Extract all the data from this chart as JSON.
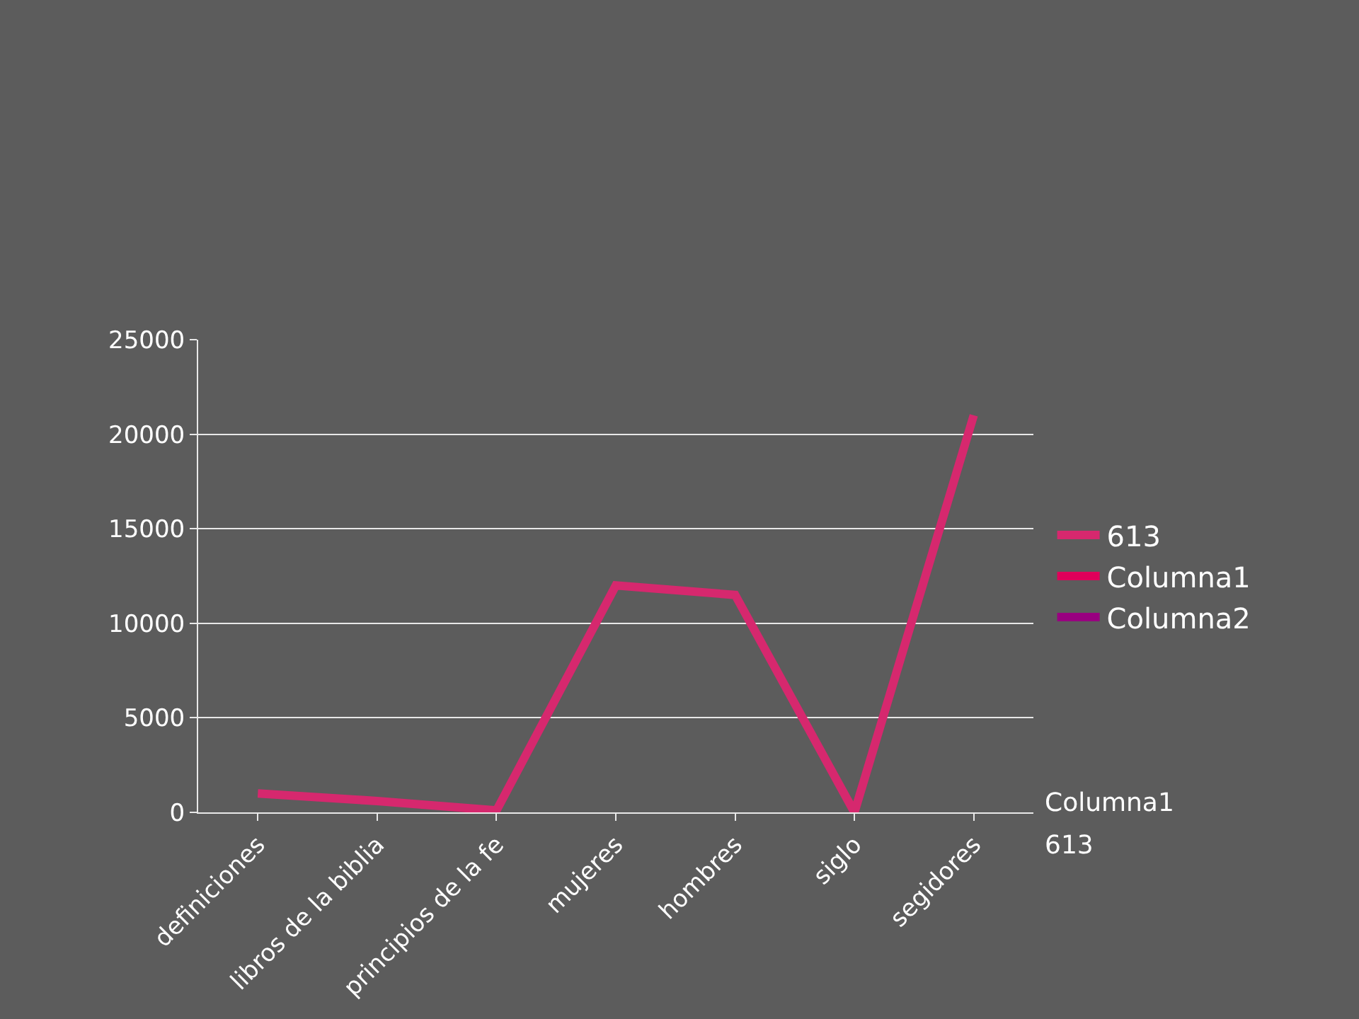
{
  "chart_data": {
    "type": "line",
    "categories": [
      "definiciones",
      "libros de la biblia",
      "principios de la fe",
      "mujeres",
      "hombres",
      "siglo",
      "segidores"
    ],
    "series": [
      {
        "name": "613",
        "color": "#d6286e",
        "values": [
          1000,
          600,
          100,
          12000,
          11500,
          0,
          21000
        ]
      },
      {
        "name": "Columna1",
        "color": "#e0005a",
        "values": [
          null,
          null,
          null,
          null,
          null,
          null,
          null
        ]
      },
      {
        "name": "Columna2",
        "color": "#990080",
        "values": [
          null,
          null,
          null,
          null,
          null,
          null,
          null
        ]
      }
    ],
    "ylim": [
      0,
      25000
    ],
    "yticks": [
      0,
      5000,
      10000,
      15000,
      20000,
      25000
    ],
    "grid": "y",
    "legend": "right",
    "marker": "none",
    "line_style": "solid",
    "annotations": [
      "Columna1",
      "613"
    ]
  }
}
